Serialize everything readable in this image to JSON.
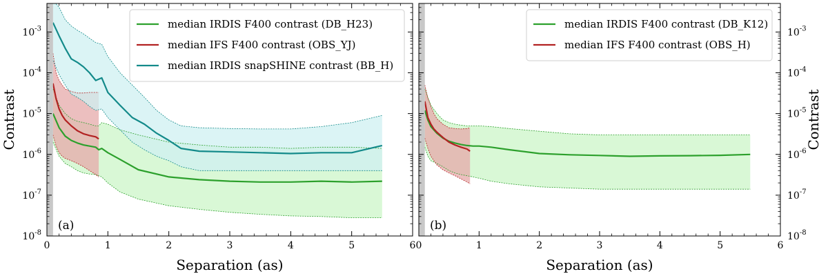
{
  "chart_data": [
    {
      "type": "line",
      "panel": "(a)",
      "xlabel": "Separation (as)",
      "ylabel": "Contrast",
      "xlim": [
        0,
        6
      ],
      "ylim_log10": [
        -8,
        -2.3
      ],
      "yscale": "log",
      "x_ticks": [
        0,
        1,
        2,
        3,
        4,
        5,
        6
      ],
      "x_tick_labels": [
        "0",
        "1",
        "2",
        "3",
        "4",
        "5",
        "6"
      ],
      "y_ticks_log10": [
        -8,
        -7,
        -6,
        -5,
        -4,
        -3
      ],
      "y_tick_labels": [
        "10^-8",
        "10^-7",
        "10^-6",
        "10^-5",
        "10^-4",
        "10^-3"
      ],
      "y_ticks_side": "left",
      "coronagraph_mask_x": [
        0,
        0.1
      ],
      "legend_position": "top-right",
      "series": [
        {
          "name": "median IRDIS F400 contrast (DB_H23)",
          "color": "#2ca02c",
          "fill": "#ccf5c8",
          "x": [
            0.1,
            0.2,
            0.3,
            0.4,
            0.5,
            0.6,
            0.7,
            0.8,
            0.85,
            0.9,
            1.0,
            1.2,
            1.5,
            2.0,
            2.5,
            3.0,
            3.5,
            4.0,
            4.5,
            5.0,
            5.5
          ],
          "median": [
            1e-05,
            4.5e-06,
            2.8e-06,
            2.2e-06,
            1.9e-06,
            1.7e-06,
            1.6e-06,
            1.5e-06,
            1.3e-06,
            1.4e-06,
            1.1e-06,
            7.5e-07,
            4.2e-07,
            2.8e-07,
            2.4e-07,
            2.2e-07,
            2.1e-07,
            2.1e-07,
            2.2e-07,
            2.1e-07,
            2.2e-07
          ],
          "upper": [
            4e-05,
            1.6e-05,
            1e-05,
            7.5e-06,
            6.5e-06,
            6e-06,
            5.5e-06,
            5e-06,
            5e-06,
            6e-06,
            5.5e-06,
            4e-06,
            3e-06,
            2e-06,
            1.7e-06,
            1.5e-06,
            1.5e-06,
            1.4e-06,
            1.5e-06,
            1.5e-06,
            1.4e-06
          ],
          "lower": [
            2e-06,
            9e-07,
            6e-07,
            5e-07,
            4e-07,
            3.5e-07,
            3.3e-07,
            3.2e-07,
            3e-07,
            2.8e-07,
            2e-07,
            1.2e-07,
            8e-08,
            5.5e-08,
            4.5e-08,
            3.8e-08,
            3.4e-08,
            3.1e-08,
            3e-08,
            2.8e-08,
            2.8e-08
          ]
        },
        {
          "name": "median IFS F400 contrast (OBS_YJ)",
          "color": "#b22222",
          "fill": "#e6a9a9",
          "x": [
            0.1,
            0.15,
            0.2,
            0.25,
            0.3,
            0.4,
            0.5,
            0.6,
            0.7,
            0.8,
            0.85
          ],
          "median": [
            5.5e-05,
            2.3e-05,
            1.3e-05,
            9e-06,
            7e-06,
            5e-06,
            3.8e-06,
            3.2e-06,
            2.9e-06,
            2.7e-06,
            2.4e-06
          ],
          "upper": [
            0.0003,
            0.0001,
            6.5e-05,
            5e-05,
            4e-05,
            3.5e-05,
            3.2e-05,
            3.2e-05,
            3.3e-05,
            3.3e-05,
            3.3e-05
          ],
          "lower": [
            3e-06,
            1.6e-06,
            1.1e-06,
            9e-07,
            8e-07,
            7e-07,
            6e-07,
            5e-07,
            4e-07,
            3.2e-07,
            2.8e-07
          ]
        },
        {
          "name": "median IRDIS snapSHINE contrast (BB_H)",
          "color": "#138a8a",
          "fill": "#cff0f2",
          "x": [
            0.1,
            0.2,
            0.3,
            0.4,
            0.5,
            0.6,
            0.7,
            0.8,
            0.9,
            1.0,
            1.2,
            1.4,
            1.6,
            1.8,
            2.0,
            2.2,
            2.5,
            3.0,
            3.5,
            4.0,
            4.5,
            5.0,
            5.5
          ],
          "median": [
            0.0017,
            0.0008,
            0.0004,
            0.00022,
            0.00018,
            0.00014,
            0.0001,
            6.5e-05,
            7.5e-05,
            3.3e-05,
            1.6e-05,
            8e-06,
            5.5e-06,
            3.3e-06,
            2.2e-06,
            1.4e-06,
            1.2e-06,
            1.15e-06,
            1.1e-06,
            1.05e-06,
            1.1e-06,
            1.1e-06,
            1.65e-06
          ],
          "upper": [
            0.006,
            0.004,
            0.002,
            0.0014,
            0.0011,
            0.0009,
            0.0007,
            0.00055,
            0.0005,
            0.00025,
            0.0001,
            5e-05,
            2.5e-05,
            1.2e-05,
            7e-06,
            5e-06,
            4.5e-06,
            4.3e-06,
            4.2e-06,
            4.2e-06,
            4.8e-06,
            6e-06,
            9e-06
          ],
          "lower": [
            0.0002,
            9e-05,
            5e-05,
            3e-05,
            2.5e-05,
            2e-05,
            1.5e-05,
            1.2e-05,
            1.3e-05,
            8e-06,
            4e-06,
            2e-06,
            1.3e-06,
            9e-07,
            7e-07,
            5e-07,
            4e-07,
            4e-07,
            4e-07,
            4e-07,
            4e-07,
            4e-07,
            4e-07
          ]
        }
      ]
    },
    {
      "type": "line",
      "panel": "(b)",
      "xlabel": "Separation (as)",
      "ylabel": "Contrast",
      "xlim": [
        0,
        6
      ],
      "ylim_log10": [
        -8,
        -2.3
      ],
      "yscale": "log",
      "x_ticks": [
        0,
        1,
        2,
        3,
        4,
        5,
        6
      ],
      "x_tick_labels": [
        "0",
        "1",
        "2",
        "3",
        "4",
        "5",
        "6"
      ],
      "y_ticks_log10": [
        -8,
        -7,
        -6,
        -5,
        -4,
        -3
      ],
      "y_tick_labels": [
        "10^-8",
        "10^-7",
        "10^-6",
        "10^-5",
        "10^-4",
        "10^-3"
      ],
      "y_ticks_side": "right",
      "coronagraph_mask_x": [
        0,
        0.1
      ],
      "legend_position": "top-right",
      "series": [
        {
          "name": "median IRDIS F400 contrast (DB_K12)",
          "color": "#2ca02c",
          "fill": "#ccf5c8",
          "x": [
            0.1,
            0.15,
            0.2,
            0.3,
            0.4,
            0.5,
            0.6,
            0.7,
            0.8,
            0.9,
            1.0,
            1.2,
            1.5,
            2.0,
            2.5,
            3.0,
            3.5,
            4.0,
            4.5,
            5.0,
            5.5
          ],
          "median": [
            1.2e-05,
            7e-06,
            4.8e-06,
            3.3e-06,
            2.5e-06,
            2.1e-06,
            1.9e-06,
            1.75e-06,
            1.65e-06,
            1.6e-06,
            1.6e-06,
            1.5e-06,
            1.3e-06,
            1.05e-06,
            9.8e-07,
            9.4e-07,
            9e-07,
            9.2e-07,
            9.3e-07,
            9.5e-07,
            1e-06
          ],
          "upper": [
            4e-05,
            2.5e-05,
            1.6e-05,
            1e-05,
            7e-06,
            6e-06,
            5.5e-06,
            5.2e-06,
            5e-06,
            5e-06,
            5e-06,
            4.8e-06,
            4.3e-06,
            3.7e-06,
            3.2e-06,
            3e-06,
            3e-06,
            3e-06,
            3e-06,
            3e-06,
            3e-06
          ],
          "lower": [
            1.5e-06,
            9e-07,
            7e-07,
            6e-07,
            5e-07,
            4e-07,
            3.5e-07,
            3.2e-07,
            3e-07,
            2.8e-07,
            2.6e-07,
            2.2e-07,
            1.9e-07,
            1.6e-07,
            1.5e-07,
            1.4e-07,
            1.4e-07,
            1.4e-07,
            1.4e-07,
            1.4e-07,
            1.4e-07
          ]
        },
        {
          "name": "median IFS F400 contrast (OBS_H)",
          "color": "#b22222",
          "fill": "#e6a9a9",
          "x": [
            0.1,
            0.15,
            0.2,
            0.25,
            0.3,
            0.4,
            0.5,
            0.6,
            0.7,
            0.8,
            0.85
          ],
          "median": [
            2e-05,
            8e-06,
            5.5e-06,
            4.2e-06,
            3.5e-06,
            2.6e-06,
            2e-06,
            1.7e-06,
            1.5e-06,
            1.35e-06,
            1.2e-06
          ],
          "upper": [
            5e-05,
            2.4e-05,
            1.5e-05,
            1e-05,
            7.5e-06,
            5.5e-06,
            4.5e-06,
            4.3e-06,
            4.2e-06,
            4.3e-06,
            4.5e-06
          ],
          "lower": [
            2.5e-06,
            1.4e-06,
            9e-07,
            7e-07,
            5.5e-07,
            4.2e-07,
            3.5e-07,
            3e-07,
            2.5e-07,
            2.1e-07,
            1.9e-07
          ]
        }
      ]
    }
  ]
}
